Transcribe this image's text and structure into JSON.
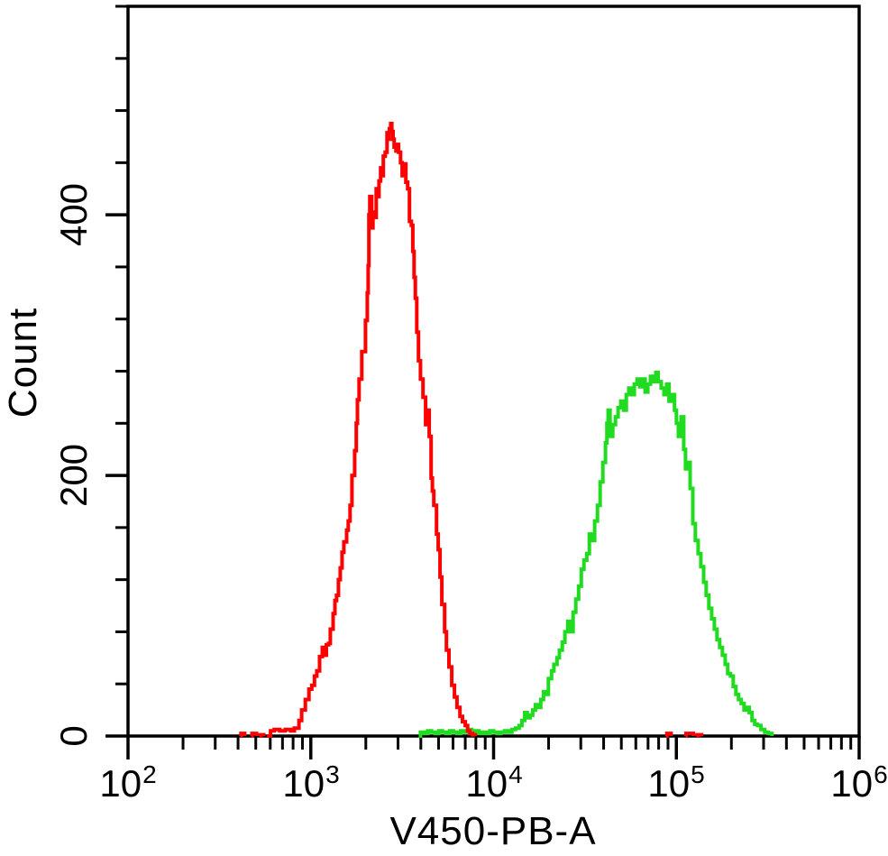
{
  "page": {
    "background": "#ffffff"
  },
  "chart_data": {
    "type": "line",
    "subtype": "flow-cytometry-histogram-overlay",
    "title": "",
    "xlabel": "V450-PB-A",
    "ylabel": "Count",
    "x_scale": "log10",
    "xlim_log10": [
      2,
      6
    ],
    "ylim": [
      0,
      560
    ],
    "grid": false,
    "legend": null,
    "axis_color": "#000000",
    "background_color": "#ffffff",
    "x_major_ticks": [
      {
        "base": "10",
        "exp": "2",
        "log10": 2
      },
      {
        "base": "10",
        "exp": "3",
        "log10": 3
      },
      {
        "base": "10",
        "exp": "4",
        "log10": 4
      },
      {
        "base": "10",
        "exp": "5",
        "log10": 5
      },
      {
        "base": "10",
        "exp": "6",
        "log10": 6
      }
    ],
    "x_minor_mantissas": [
      2,
      3,
      4,
      5,
      6,
      7,
      8,
      9
    ],
    "y_major_ticks": [
      {
        "value": 0,
        "label": "0"
      },
      {
        "value": 200,
        "label": "200"
      },
      {
        "value": 400,
        "label": "400"
      }
    ],
    "y_minor_step": 40,
    "series": [
      {
        "name": "green-histogram",
        "color": "#21db21",
        "peak_count": 279,
        "peak_x_log10": 4.888,
        "x_is_log10": true,
        "segments": [
          [
            [
              3.59,
              0
            ],
            [
              3.6,
              3
            ],
            [
              3.62,
              2
            ],
            [
              3.64,
              4
            ],
            [
              3.66,
              3
            ],
            [
              3.68,
              2
            ],
            [
              3.7,
              4
            ],
            [
              3.72,
              3
            ],
            [
              3.74,
              2
            ],
            [
              3.76,
              4
            ],
            [
              3.78,
              3
            ],
            [
              3.8,
              2
            ],
            [
              3.82,
              4
            ],
            [
              3.84,
              3
            ],
            [
              3.86,
              5
            ],
            [
              3.88,
              3
            ],
            [
              3.9,
              4
            ],
            [
              3.92,
              2
            ],
            [
              3.94,
              3
            ],
            [
              3.96,
              2
            ],
            [
              3.98,
              4
            ],
            [
              4.0,
              3
            ],
            [
              4.02,
              2
            ],
            [
              4.04,
              3
            ],
            [
              4.06,
              4
            ],
            [
              4.08,
              3
            ],
            [
              4.1,
              5
            ],
            [
              4.12,
              6
            ],
            [
              4.14,
              8
            ],
            [
              4.155,
              12
            ],
            [
              4.17,
              18
            ],
            [
              4.184,
              14
            ],
            [
              4.2,
              16
            ],
            [
              4.214,
              20
            ],
            [
              4.229,
              24
            ],
            [
              4.243,
              22
            ],
            [
              4.258,
              28
            ],
            [
              4.273,
              34
            ],
            [
              4.288,
              32
            ],
            [
              4.3,
              44
            ],
            [
              4.317,
              50
            ],
            [
              4.33,
              55
            ],
            [
              4.347,
              60
            ],
            [
              4.36,
              66
            ],
            [
              4.376,
              72
            ],
            [
              4.39,
              80
            ],
            [
              4.406,
              88
            ],
            [
              4.42,
              80
            ],
            [
              4.435,
              95
            ],
            [
              4.45,
              105
            ],
            [
              4.465,
              115
            ],
            [
              4.48,
              128
            ],
            [
              4.494,
              135
            ],
            [
              4.51,
              140
            ],
            [
              4.524,
              155
            ],
            [
              4.539,
              150
            ],
            [
              4.553,
              165
            ],
            [
              4.568,
              177
            ],
            [
              4.583,
              195
            ],
            [
              4.598,
              210
            ],
            [
              4.612,
              225
            ],
            [
              4.62,
              240
            ],
            [
              4.627,
              250
            ],
            [
              4.637,
              230
            ],
            [
              4.652,
              239
            ],
            [
              4.667,
              245
            ],
            [
              4.681,
              252
            ],
            [
              4.696,
              257
            ],
            [
              4.711,
              250
            ],
            [
              4.726,
              262
            ],
            [
              4.74,
              267
            ],
            [
              4.755,
              262
            ],
            [
              4.77,
              270
            ],
            [
              4.785,
              274
            ],
            [
              4.8,
              268
            ],
            [
              4.814,
              274
            ],
            [
              4.829,
              264
            ],
            [
              4.844,
              270
            ],
            [
              4.858,
              276
            ],
            [
              4.873,
              272
            ],
            [
              4.888,
              279
            ],
            [
              4.9,
              272
            ],
            [
              4.917,
              267
            ],
            [
              4.932,
              262
            ],
            [
              4.947,
              270
            ],
            [
              4.96,
              257
            ],
            [
              4.976,
              262
            ],
            [
              4.99,
              250
            ],
            [
              5.0,
              240
            ],
            [
              5.011,
              230
            ],
            [
              5.026,
              245
            ],
            [
              5.04,
              220
            ],
            [
              5.05,
              205
            ],
            [
              5.06,
              210
            ],
            [
              5.075,
              190
            ],
            [
              5.09,
              163
            ],
            [
              5.104,
              150
            ],
            [
              5.119,
              140
            ],
            [
              5.134,
              130
            ],
            [
              5.149,
              118
            ],
            [
              5.163,
              108
            ],
            [
              5.178,
              98
            ],
            [
              5.193,
              90
            ],
            [
              5.208,
              82
            ],
            [
              5.222,
              74
            ],
            [
              5.237,
              68
            ],
            [
              5.252,
              62
            ],
            [
              5.267,
              55
            ],
            [
              5.281,
              48
            ],
            [
              5.296,
              46
            ],
            [
              5.311,
              38
            ],
            [
              5.326,
              32
            ],
            [
              5.34,
              28
            ],
            [
              5.355,
              25
            ],
            [
              5.37,
              20
            ],
            [
              5.385,
              22
            ],
            [
              5.399,
              18
            ],
            [
              5.414,
              12
            ],
            [
              5.429,
              9
            ],
            [
              5.444,
              8
            ],
            [
              5.463,
              5
            ],
            [
              5.483,
              3
            ],
            [
              5.503,
              2
            ],
            [
              5.523,
              0
            ]
          ]
        ]
      },
      {
        "name": "red-histogram",
        "color": "#ff0000",
        "peak_count": 470,
        "peak_x_log10": 3.437,
        "x_is_log10": true,
        "segments": [
          [
            [
              2.615,
              0
            ],
            [
              2.618,
              2
            ],
            [
              2.635,
              2
            ],
            [
              2.638,
              0
            ]
          ],
          [
            [
              2.675,
              0
            ],
            [
              2.678,
              2
            ],
            [
              2.7,
              2
            ],
            [
              2.703,
              0
            ]
          ],
          [
            [
              2.72,
              0
            ],
            [
              2.723,
              1
            ],
            [
              2.74,
              1
            ],
            [
              2.743,
              0
            ]
          ],
          [
            [
              2.76,
              0
            ],
            [
              2.78,
              4
            ],
            [
              2.8,
              5
            ],
            [
              2.83,
              4
            ],
            [
              2.86,
              5
            ],
            [
              2.89,
              4
            ],
            [
              2.91,
              6
            ],
            [
              2.935,
              12
            ],
            [
              2.95,
              20
            ],
            [
              2.97,
              28
            ],
            [
              2.99,
              36
            ],
            [
              3.005,
              39
            ],
            [
              3.02,
              46
            ],
            [
              3.033,
              50
            ],
            [
              3.048,
              61
            ],
            [
              3.063,
              68
            ],
            [
              3.073,
              62
            ],
            [
              3.085,
              70
            ],
            [
              3.097,
              71
            ],
            [
              3.107,
              82
            ],
            [
              3.122,
              94
            ],
            [
              3.132,
              104
            ],
            [
              3.141,
              108
            ],
            [
              3.151,
              120
            ],
            [
              3.161,
              129
            ],
            [
              3.171,
              141
            ],
            [
              3.181,
              149
            ],
            [
              3.196,
              158
            ],
            [
              3.205,
              165
            ],
            [
              3.215,
              177
            ],
            [
              3.225,
              200
            ],
            [
              3.24,
              219
            ],
            [
              3.249,
              240
            ],
            [
              3.255,
              258
            ],
            [
              3.264,
              274
            ],
            [
              3.279,
              295
            ],
            [
              3.299,
              319
            ],
            [
              3.309,
              340
            ],
            [
              3.314,
              361
            ],
            [
              3.318,
              400
            ],
            [
              3.323,
              414
            ],
            [
              3.333,
              390
            ],
            [
              3.34,
              402
            ],
            [
              3.348,
              398
            ],
            [
              3.358,
              420
            ],
            [
              3.368,
              414
            ],
            [
              3.373,
              426
            ],
            [
              3.382,
              436
            ],
            [
              3.39,
              430
            ],
            [
              3.397,
              445
            ],
            [
              3.407,
              448
            ],
            [
              3.417,
              463
            ],
            [
              3.423,
              458
            ],
            [
              3.43,
              466
            ],
            [
              3.437,
              470
            ],
            [
              3.443,
              464
            ],
            [
              3.45,
              458
            ],
            [
              3.456,
              452
            ],
            [
              3.466,
              449
            ],
            [
              3.471,
              454
            ],
            [
              3.48,
              448
            ],
            [
              3.491,
              440
            ],
            [
              3.5,
              430
            ],
            [
              3.51,
              439
            ],
            [
              3.52,
              425
            ],
            [
              3.53,
              420
            ],
            [
              3.54,
              395
            ],
            [
              3.55,
              392
            ],
            [
              3.558,
              372
            ],
            [
              3.565,
              352
            ],
            [
              3.572,
              336
            ],
            [
              3.58,
              310
            ],
            [
              3.589,
              288
            ],
            [
              3.6,
              274
            ],
            [
              3.614,
              260
            ],
            [
              3.628,
              239
            ],
            [
              3.634,
              248
            ],
            [
              3.64,
              250
            ],
            [
              3.648,
              230
            ],
            [
              3.658,
              198
            ],
            [
              3.665,
              188
            ],
            [
              3.673,
              177
            ],
            [
              3.688,
              155
            ],
            [
              3.697,
              143
            ],
            [
              3.707,
              122
            ],
            [
              3.717,
              101
            ],
            [
              3.732,
              80
            ],
            [
              3.742,
              66
            ],
            [
              3.756,
              53
            ],
            [
              3.771,
              39
            ],
            [
              3.786,
              30
            ],
            [
              3.8,
              22
            ],
            [
              3.816,
              15
            ],
            [
              3.83,
              11
            ],
            [
              3.845,
              8
            ],
            [
              3.858,
              4
            ],
            [
              3.87,
              2
            ],
            [
              3.885,
              1
            ],
            [
              3.9,
              0
            ]
          ],
          [
            [
              4.945,
              0
            ],
            [
              4.948,
              2
            ],
            [
              4.968,
              2
            ],
            [
              4.971,
              0
            ]
          ],
          [
            [
              5.05,
              0
            ],
            [
              5.053,
              2
            ],
            [
              5.09,
              2
            ],
            [
              5.093,
              0
            ]
          ],
          [
            [
              5.11,
              0
            ],
            [
              5.113,
              1
            ],
            [
              5.135,
              1
            ],
            [
              5.138,
              0
            ]
          ]
        ]
      }
    ]
  }
}
